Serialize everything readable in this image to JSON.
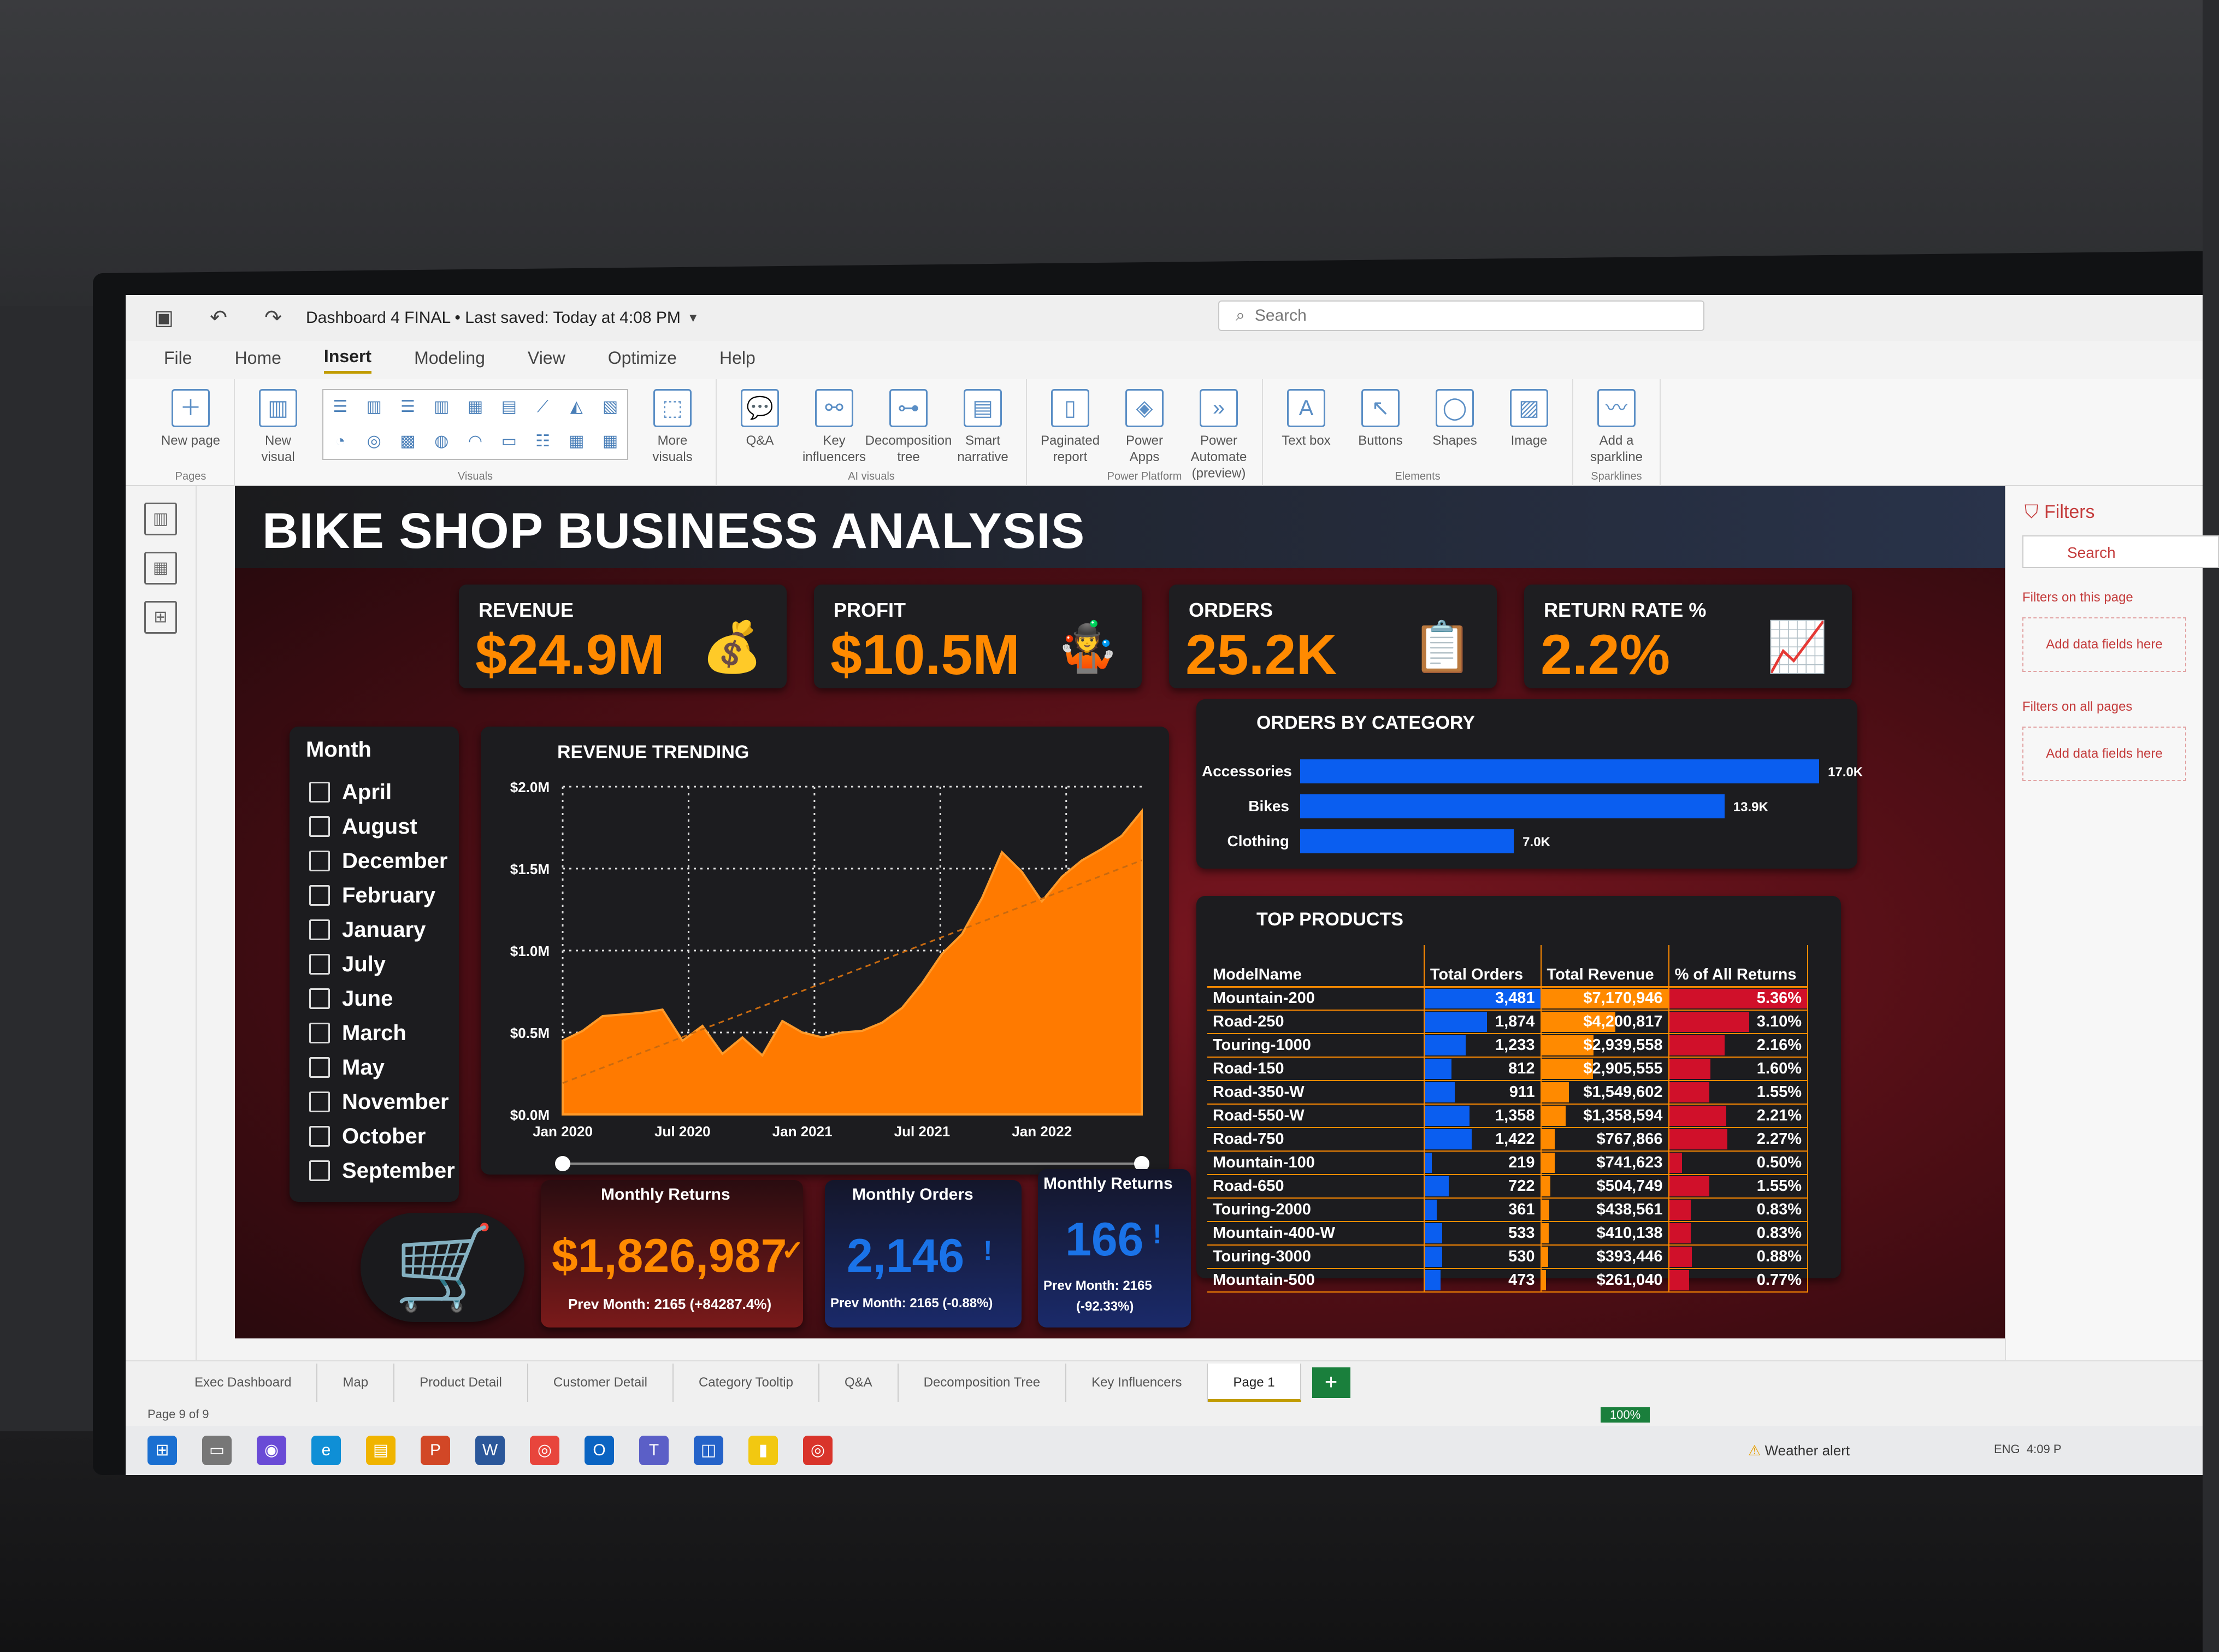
{
  "window": {
    "title": "Dashboard 4 FINAL • Last saved: Today at 4:08 PM",
    "search_placeholder": "Search"
  },
  "menu": [
    "File",
    "Home",
    "Insert",
    "Modeling",
    "View",
    "Optimize",
    "Help"
  ],
  "ribbon": {
    "pages": {
      "label": "Pages",
      "new_page": "New page"
    },
    "visuals": {
      "label": "Visuals",
      "new_visual": "New visual",
      "more_visuals": "More visuals"
    },
    "ai_visuals": {
      "label": "AI visuals",
      "items": [
        "Q&A",
        "Key influencers",
        "Decomposition tree",
        "Smart narrative"
      ]
    },
    "power_platform": {
      "label": "Power Platform",
      "items": [
        "Paginated report",
        "Power Apps",
        "Power Automate (preview)"
      ]
    },
    "elements": {
      "label": "Elements",
      "items": [
        "Text box",
        "Buttons",
        "Shapes",
        "Image"
      ]
    },
    "sparklines": {
      "label": "Sparklines",
      "add": "Add a sparkline"
    }
  },
  "dashboard": {
    "title": "BIKE SHOP BUSINESS ANALYSIS",
    "kpis": [
      {
        "label": "REVENUE",
        "value": "$24.9M",
        "icon": "money-bag-icon"
      },
      {
        "label": "PROFIT",
        "value": "$10.5M",
        "icon": "juggling-person-icon"
      },
      {
        "label": "ORDERS",
        "value": "25.2K",
        "icon": "checklist-icon"
      },
      {
        "label": "RETURN RATE %",
        "value": "2.2%",
        "icon": "growth-chart-icon"
      }
    ],
    "month_slicer": {
      "title": "Month",
      "items": [
        "April",
        "August",
        "December",
        "February",
        "January",
        "July",
        "June",
        "March",
        "May",
        "November",
        "October",
        "September"
      ]
    },
    "orders_by_category": {
      "title": "ORDERS BY CATEGORY"
    },
    "top_products": {
      "title": "TOP PRODUCTS",
      "columns": [
        "ModelName",
        "Total Orders",
        "Total Revenue",
        "% of All Returns"
      ],
      "rows": [
        {
          "model": "Mountain-200",
          "orders": "3,481",
          "revenue": "$7,170,946",
          "returns": "5.36%",
          "o": 3481,
          "r": 7170946,
          "p": 5.36
        },
        {
          "model": "Road-250",
          "orders": "1,874",
          "revenue": "$4,200,817",
          "returns": "3.10%",
          "o": 1874,
          "r": 4200817,
          "p": 3.1
        },
        {
          "model": "Touring-1000",
          "orders": "1,233",
          "revenue": "$2,939,558",
          "returns": "2.16%",
          "o": 1233,
          "r": 2939558,
          "p": 2.16
        },
        {
          "model": "Road-150",
          "orders": "812",
          "revenue": "$2,905,555",
          "returns": "1.60%",
          "o": 812,
          "r": 2905555,
          "p": 1.6
        },
        {
          "model": "Road-350-W",
          "orders": "911",
          "revenue": "$1,549,602",
          "returns": "1.55%",
          "o": 911,
          "r": 1549602,
          "p": 1.55
        },
        {
          "model": "Road-550-W",
          "orders": "1,358",
          "revenue": "$1,358,594",
          "returns": "2.21%",
          "o": 1358,
          "r": 1358594,
          "p": 2.21
        },
        {
          "model": "Road-750",
          "orders": "1,422",
          "revenue": "$767,866",
          "returns": "2.27%",
          "o": 1422,
          "r": 767866,
          "p": 2.27
        },
        {
          "model": "Mountain-100",
          "orders": "219",
          "revenue": "$741,623",
          "returns": "0.50%",
          "o": 219,
          "r": 741623,
          "p": 0.5
        },
        {
          "model": "Road-650",
          "orders": "722",
          "revenue": "$504,749",
          "returns": "1.55%",
          "o": 722,
          "r": 504749,
          "p": 1.55
        },
        {
          "model": "Touring-2000",
          "orders": "361",
          "revenue": "$438,561",
          "returns": "0.83%",
          "o": 361,
          "r": 438561,
          "p": 0.83
        },
        {
          "model": "Mountain-400-W",
          "orders": "533",
          "revenue": "$410,138",
          "returns": "0.83%",
          "o": 533,
          "r": 410138,
          "p": 0.83
        },
        {
          "model": "Touring-3000",
          "orders": "530",
          "revenue": "$393,446",
          "returns": "0.88%",
          "o": 530,
          "r": 393446,
          "p": 0.88
        },
        {
          "model": "Mountain-500",
          "orders": "473",
          "revenue": "$261,040",
          "returns": "0.77%",
          "o": 473,
          "r": 261040,
          "p": 0.77
        }
      ]
    },
    "cards": [
      {
        "title": "Monthly Returns",
        "value": "$1,826,987",
        "sub": "Prev Month: 2165 (+84287.4%)",
        "color": "#ff8a00",
        "mark": "✓"
      },
      {
        "title": "Monthly Orders",
        "value": "2,146",
        "sub": "Prev Month: 2165 (-0.88%)",
        "color": "#1a73e8",
        "mark": "!"
      },
      {
        "title": "Monthly Returns",
        "value": "166",
        "sub": "Prev Month: 2165",
        "sub2": "(-92.33%)",
        "color": "#1a73e8",
        "mark": "!"
      }
    ],
    "cart_icon": "shopping-cart-icon"
  },
  "chart_data": [
    {
      "type": "area",
      "title": "REVENUE TRENDING",
      "x_tick_labels": [
        "Jan 2020",
        "Jul 2020",
        "Jan 2021",
        "Jul 2021",
        "Jan 2022"
      ],
      "y_tick_labels": [
        "$0.0M",
        "$0.5M",
        "$1.0M",
        "$1.5M",
        "$2.0M"
      ],
      "ylim": [
        0,
        2000000
      ],
      "x": [
        "2020-01",
        "2020-02",
        "2020-03",
        "2020-04",
        "2020-05",
        "2020-06",
        "2020-07",
        "2020-08",
        "2020-09",
        "2020-10",
        "2020-11",
        "2020-12",
        "2021-01",
        "2021-02",
        "2021-03",
        "2021-04",
        "2021-05",
        "2021-06",
        "2021-07",
        "2021-08",
        "2021-09",
        "2021-10",
        "2021-11",
        "2021-12",
        "2022-01",
        "2022-02",
        "2022-03",
        "2022-04",
        "2022-05",
        "2022-06"
      ],
      "values": [
        450000,
        510000,
        600000,
        610000,
        620000,
        640000,
        450000,
        540000,
        370000,
        470000,
        360000,
        570000,
        500000,
        470000,
        500000,
        510000,
        560000,
        650000,
        800000,
        980000,
        1100000,
        1320000,
        1600000,
        1480000,
        1300000,
        1450000,
        1550000,
        1620000,
        1700000,
        1850000
      ],
      "trend_line": true,
      "grid": true,
      "color": "#ff7a00"
    },
    {
      "type": "bar",
      "orientation": "horizontal",
      "title": "ORDERS BY CATEGORY",
      "categories": [
        "Accessories",
        "Bikes",
        "Clothing"
      ],
      "values": [
        17000,
        13900,
        7000
      ],
      "value_labels": [
        "17.0K",
        "13.9K",
        "7.0K"
      ],
      "color": "#0a5ef0"
    }
  ],
  "filters_pane": {
    "title": "Filters",
    "search": "Search",
    "on_this_page": "Filters on this page",
    "on_all_pages": "Filters on all pages",
    "drop_hint": "Add data fields here"
  },
  "page_tabs": [
    "Exec Dashboard",
    "Map",
    "Product Detail",
    "Customer Detail",
    "Category Tooltip",
    "Q&A",
    "Decomposition Tree",
    "Key Influencers",
    "Page 1"
  ],
  "active_tab": "Page 1",
  "status": {
    "page_info": "Page 9 of 9",
    "zoom": "100%"
  },
  "taskbar": {
    "weather": "Weather alert",
    "lang": "ENG",
    "time": "4:09 P"
  }
}
